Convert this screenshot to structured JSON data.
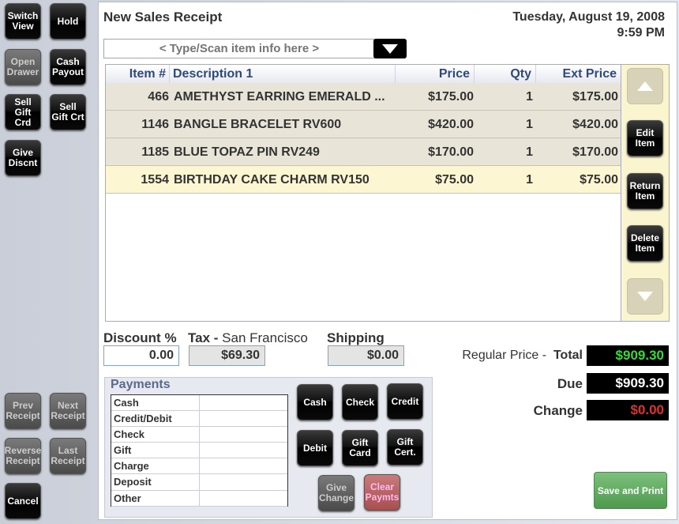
{
  "sidebar": {
    "switch_view": "Switch\nView",
    "hold": "Hold",
    "open_drawer": "Open\nDrawer",
    "cash_payout": "Cash\nPayout",
    "sell_gift_card": "Sell\nGift Crd",
    "sell_gift_cert": "Sell\nGift Crt",
    "give_discount": "Give\nDiscnt",
    "prev_receipt": "Prev\nReceipt",
    "next_receipt": "Next\nReceipt",
    "reverse_receipt": "Reverse\nReceipt",
    "last_receipt": "Last\nReceipt",
    "cancel": "Cancel"
  },
  "header": {
    "title": "New Sales Receipt",
    "date": "Tuesday, August 19, 2008",
    "time": "9:59 PM"
  },
  "search": {
    "placeholder": "< Type/Scan item info here >"
  },
  "table": {
    "columns": [
      "Item #",
      "Description 1",
      "Price",
      "Qty",
      "Ext Price"
    ],
    "rows": [
      {
        "item": "466",
        "desc": "AMETHYST EARRING EMERALD ...",
        "price": "$175.00",
        "qty": "1",
        "ext": "$175.00"
      },
      {
        "item": "1146",
        "desc": "BANGLE BRACELET RV600",
        "price": "$420.00",
        "qty": "1",
        "ext": "$420.00"
      },
      {
        "item": "1185",
        "desc": "BLUE TOPAZ PIN RV249",
        "price": "$170.00",
        "qty": "1",
        "ext": "$170.00"
      },
      {
        "item": "1554",
        "desc": "BIRTHDAY CAKE CHARM RV150",
        "price": "$75.00",
        "qty": "1",
        "ext": "$75.00"
      }
    ]
  },
  "item_actions": {
    "edit": "Edit\nItem",
    "return": "Return\nItem",
    "delete": "Delete\nItem"
  },
  "fields": {
    "discount_label": "Discount %",
    "discount": "0.00",
    "tax_label": "Tax",
    "tax_sep": " - ",
    "tax_location": "San Francisco",
    "tax": "$69.30",
    "shipping_label": "Shipping",
    "shipping": "$0.00"
  },
  "totals": {
    "regular_price_label": "Regular Price - ",
    "total_label": "Total",
    "total": "$909.30",
    "due_label": "Due",
    "due": "$909.30",
    "change_label": "Change",
    "change": "$0.00"
  },
  "payments": {
    "title": "Payments",
    "types": [
      "Cash",
      "Credit/Debit",
      "Check",
      "Gift",
      "Charge",
      "Deposit",
      "Other"
    ],
    "buttons": {
      "cash": "Cash",
      "check": "Check",
      "credit": "Credit",
      "debit": "Debit",
      "gift_card": "Gift\nCard",
      "gift_cert": "Gift\nCert.",
      "give_change": "Give\nChange",
      "clear": "Clear\nPaymts"
    }
  },
  "save_print": "Save and Print",
  "colors": {
    "total": "#33dd33",
    "change": "#e03030",
    "save": "#5fa85f"
  }
}
